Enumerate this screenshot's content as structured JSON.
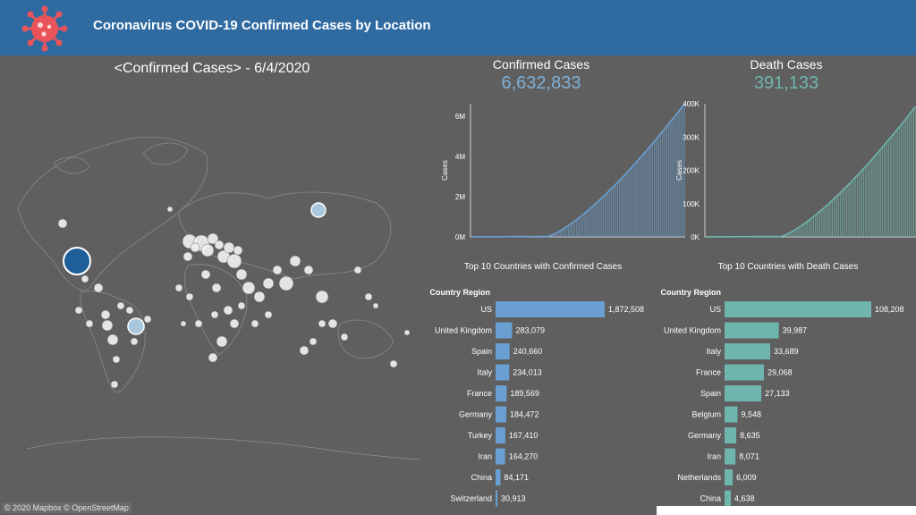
{
  "header": {
    "title": "Coronavirus COVID-19 Confirmed Cases by Location",
    "logo_icon": "virus-icon",
    "logo_color": "#e8545a"
  },
  "map": {
    "title": "<Confirmed Cases> - 6/4/2020",
    "credit": "© 2020 Mapbox © OpenStreetMap",
    "highlight_color_us": "#1f5f99",
    "highlight_color_other": "#a9c8df"
  },
  "kpis": {
    "confirmed": {
      "label": "Confirmed Cases",
      "value": "6,632,833",
      "color": "#7fb0d6"
    },
    "deaths": {
      "label": "Death Cases",
      "value": "391,133",
      "color": "#6fb5ad"
    }
  },
  "chart_data": [
    {
      "type": "area",
      "ylabel": "Cases",
      "ylim": [
        0,
        6632833
      ],
      "yticks": [
        "0M",
        "2M",
        "4M",
        "6M"
      ],
      "ytick_values": [
        0,
        2000000,
        4000000,
        6000000
      ],
      "color": "#6a9fd1",
      "x_count": 135,
      "values_shape": "cumulative curve rising from near 0 to 6,632,833 by 6/4/2020",
      "end_value": 6632833
    },
    {
      "type": "area",
      "ylabel": "Cases",
      "ylim": [
        0,
        400000
      ],
      "yticks": [
        "0K",
        "100K",
        "200K",
        "300K",
        "400K"
      ],
      "ytick_values": [
        0,
        100000,
        200000,
        300000,
        400000
      ],
      "color": "#6fb5ad",
      "x_count": 135,
      "end_value": 391133
    },
    {
      "type": "bar",
      "title": "Top 10 Countries with Confirmed Cases",
      "header": "Country Region",
      "color": "#6a9fd1",
      "categories": [
        "US",
        "United Kingdom",
        "Spain",
        "Italy",
        "France",
        "Germany",
        "Turkey",
        "Iran",
        "China",
        "Switzerland"
      ],
      "values": [
        1872508,
        283079,
        240660,
        234013,
        189569,
        184472,
        167410,
        164270,
        84171,
        30913
      ],
      "labels": [
        "1,872,508",
        "283,079",
        "240,660",
        "234,013",
        "189,569",
        "184,472",
        "167,410",
        "164,270",
        "84,171",
        "30,913"
      ]
    },
    {
      "type": "bar",
      "title": "Top 10 Countries with Death Cases",
      "header": "Country Region",
      "color": "#6fb5ad",
      "categories": [
        "US",
        "United Kingdom",
        "Italy",
        "France",
        "Spain",
        "Belgium",
        "Germany",
        "Iran",
        "Netherlands",
        "China"
      ],
      "values": [
        108208,
        39987,
        33689,
        29068,
        27133,
        9548,
        8635,
        8071,
        6009,
        4638
      ],
      "labels": [
        "108,208",
        "39,987",
        "33,689",
        "29,068",
        "27,133",
        "9,548",
        "8,635",
        "8,071",
        "6,009",
        "4,638"
      ]
    }
  ]
}
